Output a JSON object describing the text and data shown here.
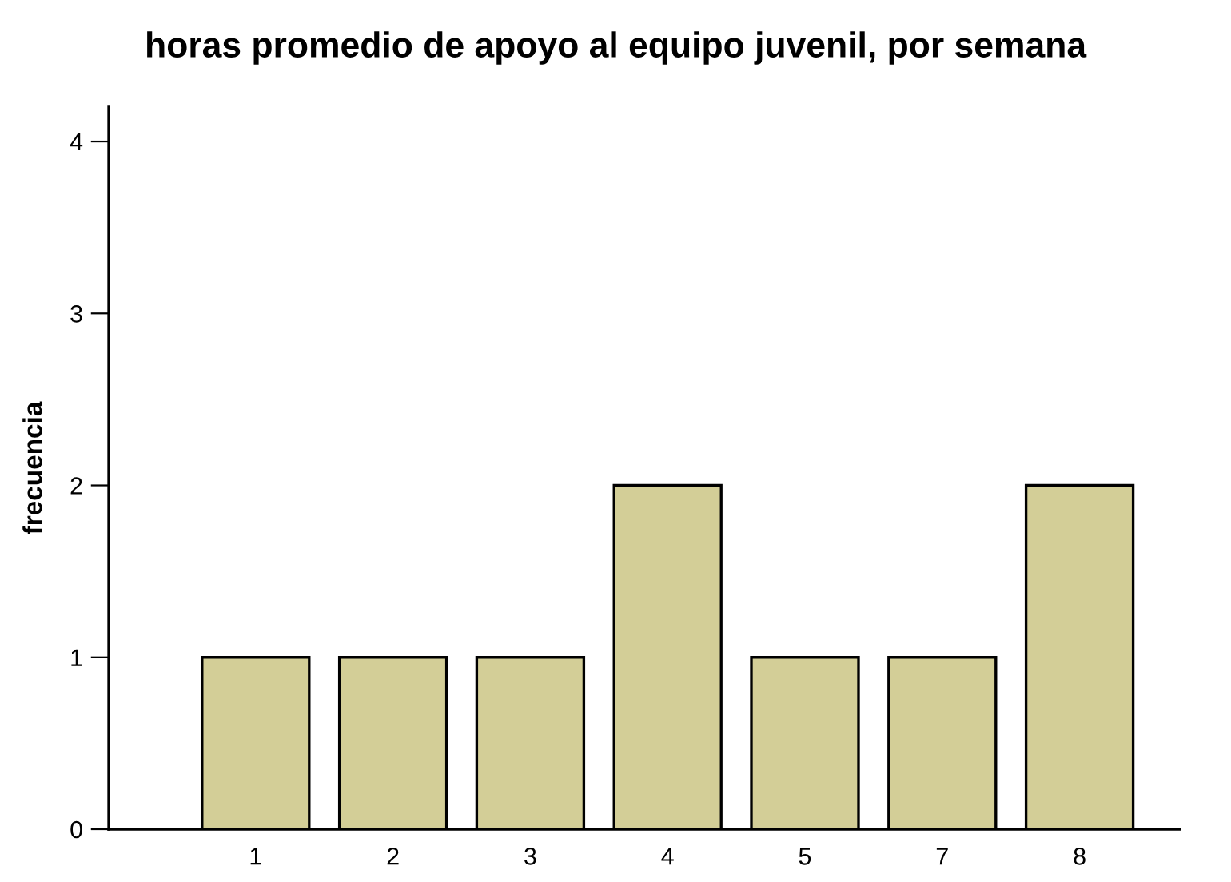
{
  "chart_data": {
    "type": "bar",
    "title": "horas promedio de apoyo al equipo juvenil, por semana",
    "ylabel": "frecuencia",
    "categories": [
      "1",
      "2",
      "3",
      "4",
      "5",
      "7",
      "8"
    ],
    "values": [
      1,
      1,
      1,
      2,
      1,
      1,
      2
    ],
    "color": "#d3ce97",
    "ylim": [
      0,
      4.2
    ],
    "yticks": [
      0,
      1,
      2,
      3,
      4
    ],
    "grid": false,
    "legend": false
  }
}
